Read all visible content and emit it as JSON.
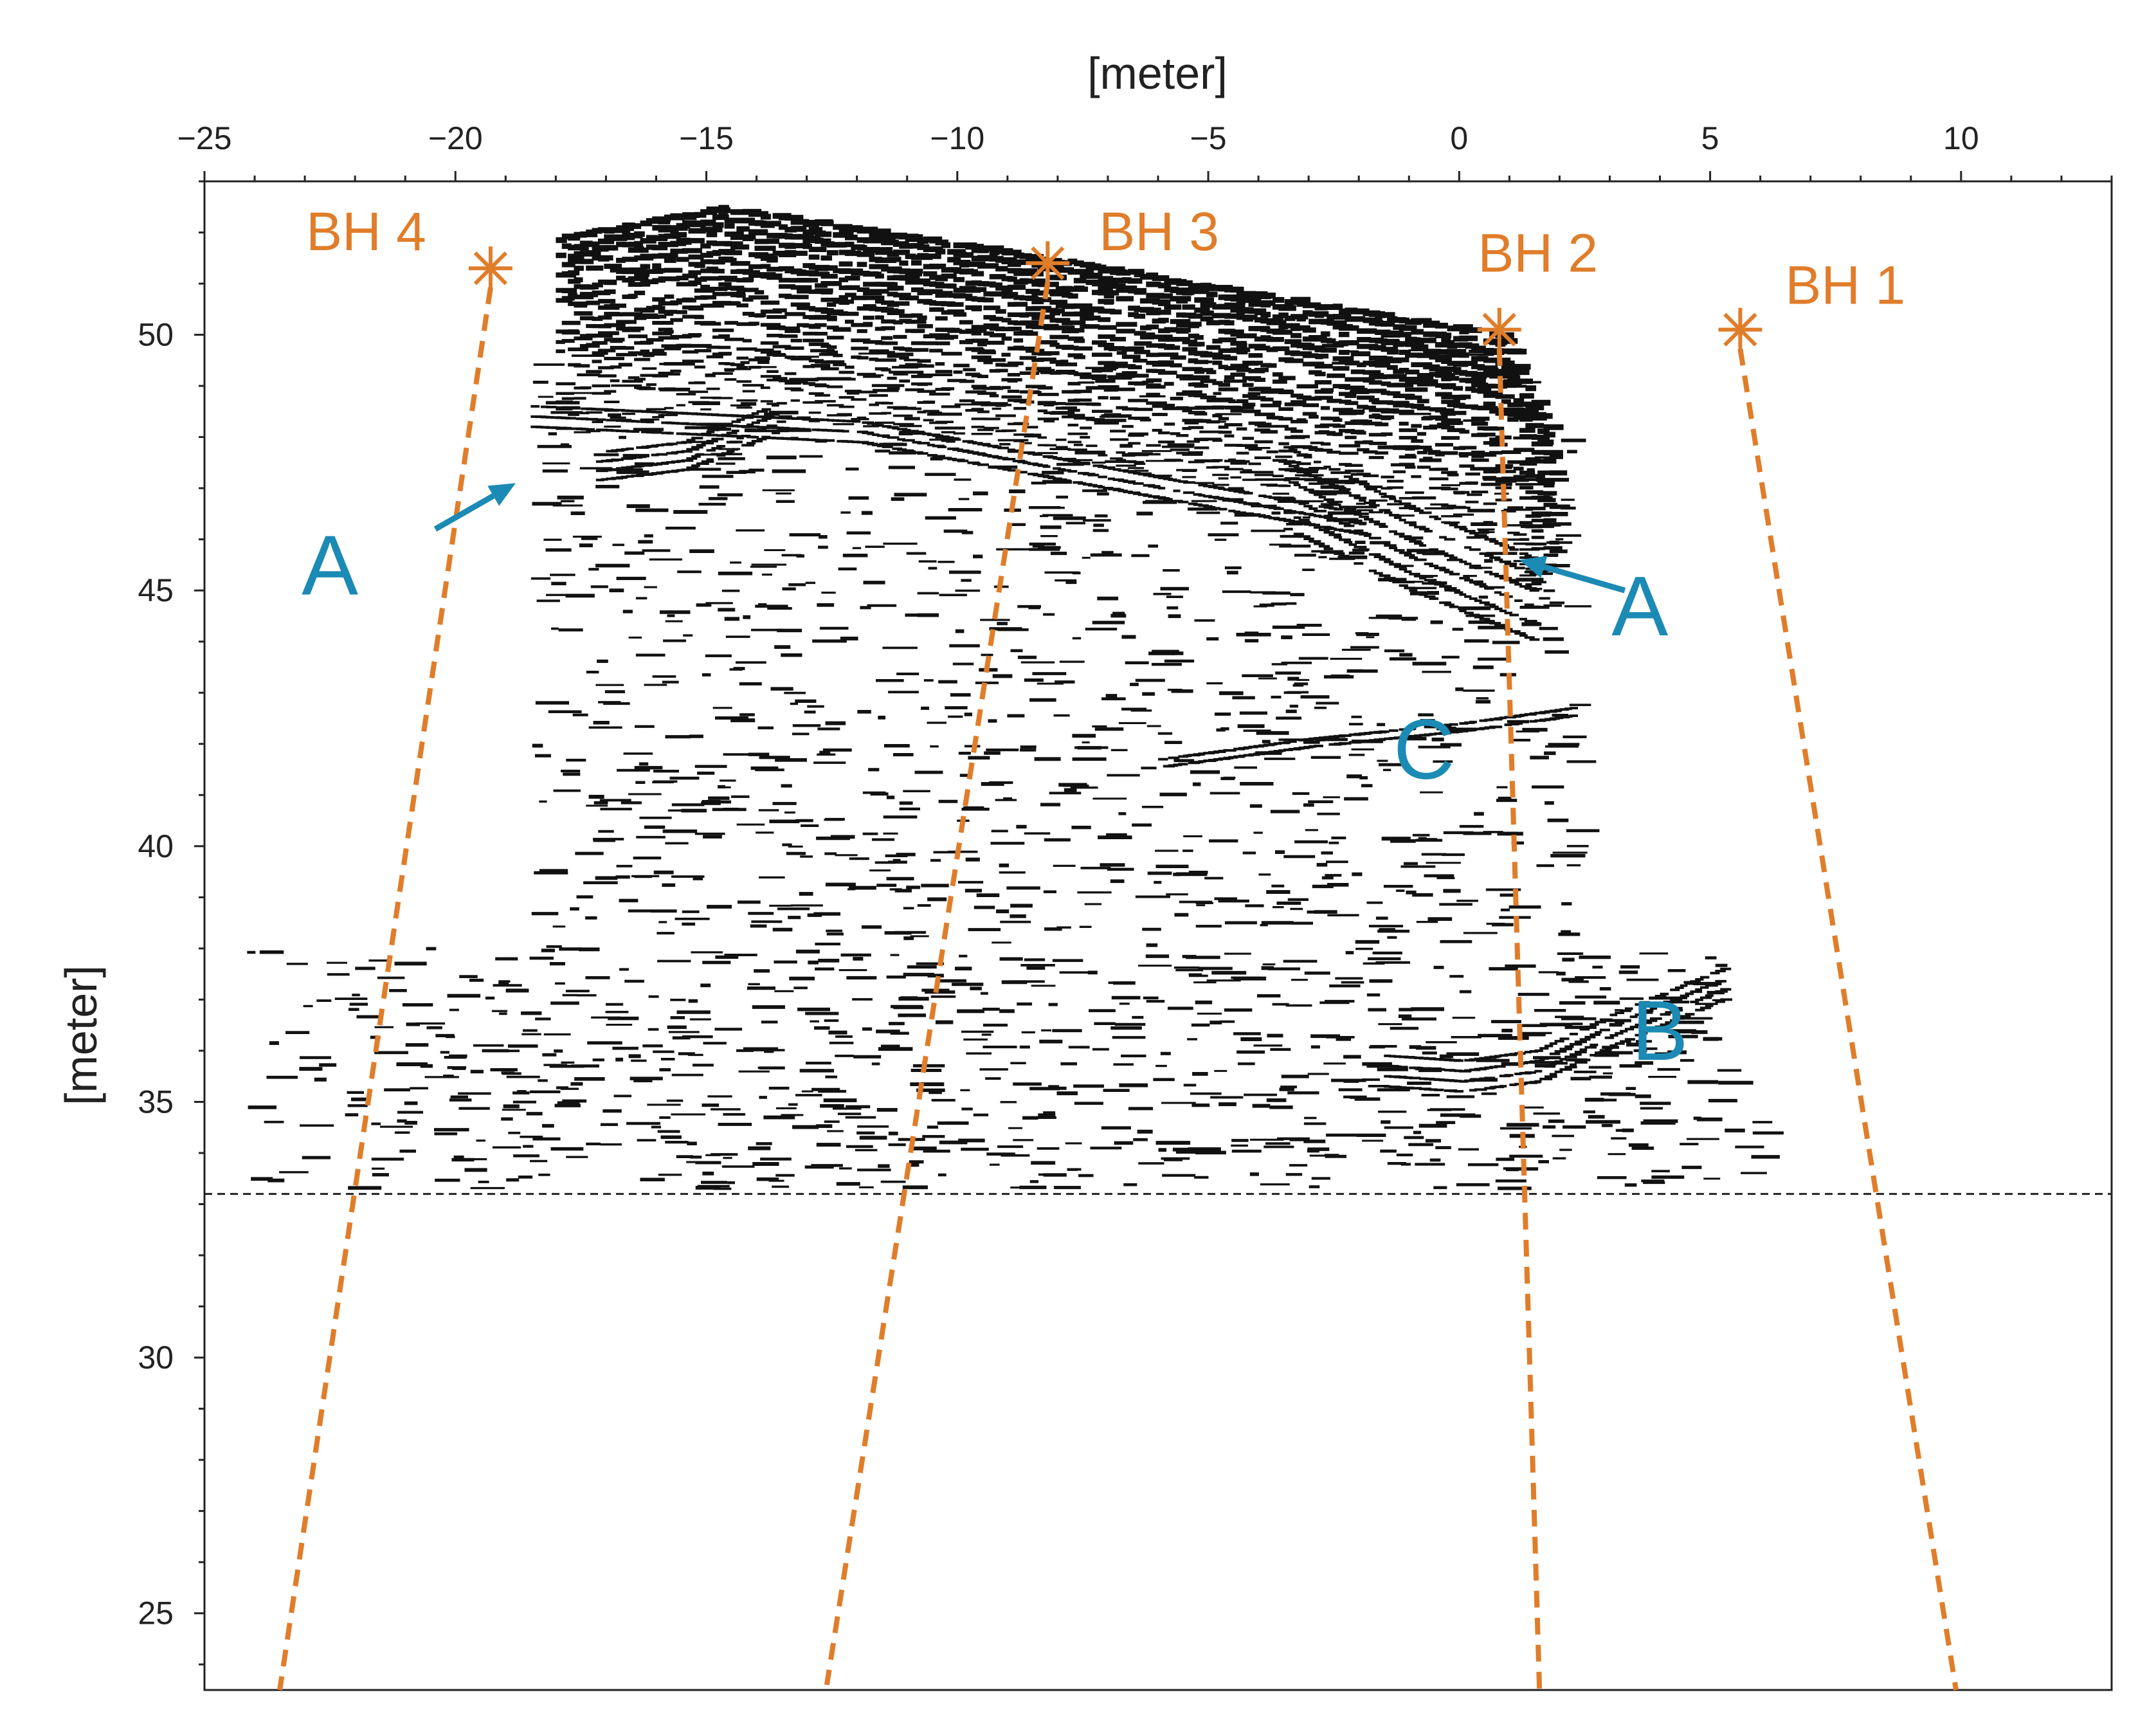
{
  "chart_data": {
    "type": "scatter",
    "xlabel": "[meter]",
    "ylabel": "[meter]",
    "xlim": [
      -25,
      13
    ],
    "ylim": [
      23.5,
      53
    ],
    "xticks": [
      -25,
      -20,
      -15,
      -10,
      -5,
      0,
      5,
      10
    ],
    "yticks": [
      25,
      30,
      35,
      40,
      45,
      50
    ],
    "x_axis_position": "top",
    "grid": false,
    "legend": "none",
    "colors": {
      "boreholes": "#e07d2a",
      "annotations": "#1b8ab4",
      "reflections": "#111111",
      "axes": "#222222"
    },
    "boreholes": [
      {
        "label": "BH 4",
        "top": [
          -19.3,
          51.3
        ],
        "bottom": [
          -23.5,
          23.5
        ]
      },
      {
        "label": "BH 3",
        "top": [
          -8.2,
          51.4
        ],
        "bottom": [
          -12.6,
          23.6
        ]
      },
      {
        "label": "BH 2",
        "top": [
          0.8,
          50.1
        ],
        "bottom": [
          1.6,
          23.5
        ]
      },
      {
        "label": "BH 1",
        "top": [
          5.6,
          50.1
        ],
        "bottom": [
          9.9,
          23.5
        ]
      }
    ],
    "reference_line": {
      "y": 33.2,
      "style": "dashed"
    },
    "annotations": [
      {
        "label": "A",
        "x": -22.5,
        "y": 45.5,
        "arrow_from": [
          -20.4,
          46.2
        ],
        "arrow_to": [
          -18.8,
          47.1
        ]
      },
      {
        "label": "A",
        "x": 3.6,
        "y": 44.7,
        "arrow_from": [
          3.3,
          45.0
        ],
        "arrow_to": [
          1.2,
          45.6
        ]
      },
      {
        "label": "C",
        "x": -0.7,
        "y": 41.9
      },
      {
        "label": "B",
        "x": 4.0,
        "y": 36.4
      }
    ],
    "ground_surface": [
      [
        -18,
        51.9
      ],
      [
        -16,
        52.2
      ],
      [
        -14.8,
        52.5
      ],
      [
        -12,
        52.2
      ],
      [
        -8.2,
        51.5
      ],
      [
        -5,
        51.0
      ],
      [
        -2,
        50.6
      ],
      [
        0.8,
        50.0
      ],
      [
        1.2,
        49.6
      ],
      [
        1.7,
        48.5
      ]
    ],
    "reflectors": [
      {
        "name": "surface-layering",
        "top": [
          [
            -18,
            51.9
          ],
          [
            -14.8,
            52.5
          ],
          [
            -8.2,
            51.5
          ],
          [
            0.8,
            50.0
          ],
          [
            1.8,
            48.0
          ]
        ],
        "thickness": 4.0,
        "lines": 24
      },
      {
        "name": "A-dipping",
        "points": [
          [
            -17.2,
            47.7
          ],
          [
            -15.5,
            47.9
          ],
          [
            -13.5,
            48.7
          ]
        ],
        "repeat": 4,
        "spacing": 0.18
      },
      {
        "name": "A-long",
        "points": [
          [
            -18.5,
            48.6
          ],
          [
            -12,
            48.3
          ],
          [
            -6,
            47.2
          ],
          [
            -2,
            46.5
          ]
        ],
        "repeat": 3,
        "spacing": 0.2
      },
      {
        "name": "A-right",
        "points": [
          [
            -3.5,
            47.8
          ],
          [
            -1,
            46.6
          ],
          [
            1.5,
            45.6
          ]
        ],
        "repeat": 6,
        "spacing": 0.32
      },
      {
        "name": "C",
        "points": [
          [
            -6,
            41.7
          ],
          [
            -3,
            42.1
          ],
          [
            0,
            42.4
          ],
          [
            2.2,
            42.7
          ]
        ],
        "repeat": 2,
        "spacing": 0.15
      },
      {
        "name": "B",
        "points": [
          [
            -1.5,
            35.9
          ],
          [
            0,
            35.8
          ],
          [
            1.5,
            36.0
          ],
          [
            3,
            36.7
          ],
          [
            5.2,
            37.6
          ]
        ],
        "repeat": 4,
        "spacing": 0.2
      }
    ]
  }
}
